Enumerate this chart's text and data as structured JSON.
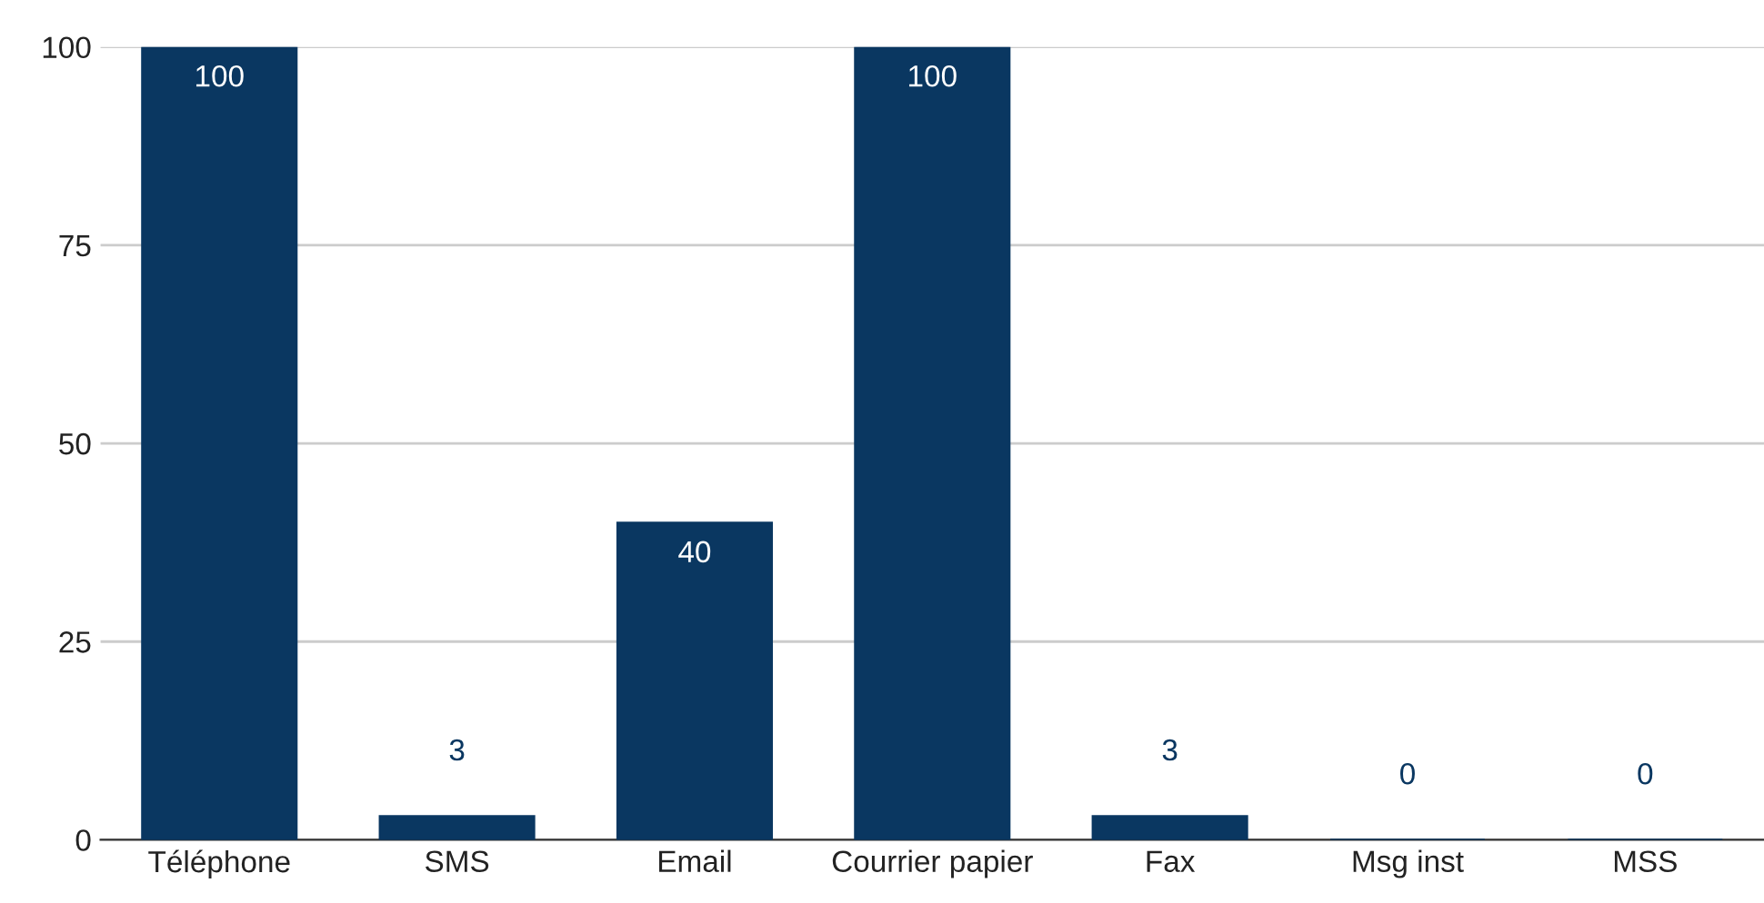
{
  "chart_data": {
    "type": "bar",
    "categories": [
      "Téléphone",
      "SMS",
      "Email",
      "Courrier papier",
      "Fax",
      "Msg inst",
      "MSS"
    ],
    "values": [
      100,
      3,
      40,
      100,
      3,
      0,
      0
    ],
    "color": "#0a3761",
    "ylim": [
      0,
      100
    ],
    "yticks": [
      0,
      25,
      50,
      75,
      100
    ],
    "grid": "y",
    "data_labels": true
  }
}
